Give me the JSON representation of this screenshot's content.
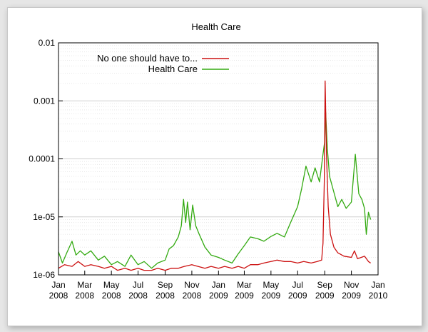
{
  "chart_data": {
    "type": "line",
    "title": "Health Care",
    "xlabel": "",
    "ylabel": "",
    "y_scale": "log",
    "ylim": [
      1e-06,
      0.01
    ],
    "y_ticks": [
      {
        "value": 1e-06,
        "label": "1e-06"
      },
      {
        "value": 1e-05,
        "label": "1e-05"
      },
      {
        "value": 0.0001,
        "label": "0.0001"
      },
      {
        "value": 0.001,
        "label": "0.001"
      },
      {
        "value": 0.01,
        "label": "0.01"
      }
    ],
    "xlim": [
      "2008-01-01",
      "2010-01-01"
    ],
    "x_ticks": [
      {
        "date": "2008-01-01",
        "month": "Jan",
        "year": "2008"
      },
      {
        "date": "2008-03-01",
        "month": "Mar",
        "year": "2008"
      },
      {
        "date": "2008-05-01",
        "month": "May",
        "year": "2008"
      },
      {
        "date": "2008-07-01",
        "month": "Jul",
        "year": "2008"
      },
      {
        "date": "2008-09-01",
        "month": "Sep",
        "year": "2008"
      },
      {
        "date": "2008-11-01",
        "month": "Nov",
        "year": "2008"
      },
      {
        "date": "2009-01-01",
        "month": "Jan",
        "year": "2009"
      },
      {
        "date": "2009-03-01",
        "month": "Mar",
        "year": "2009"
      },
      {
        "date": "2009-05-01",
        "month": "May",
        "year": "2009"
      },
      {
        "date": "2009-07-01",
        "month": "Jul",
        "year": "2009"
      },
      {
        "date": "2009-09-01",
        "month": "Sep",
        "year": "2009"
      },
      {
        "date": "2009-11-01",
        "month": "Nov",
        "year": "2009"
      },
      {
        "date": "2010-01-01",
        "month": "Jan",
        "year": "2010"
      }
    ],
    "grid": true,
    "legend_position": "top-right",
    "series": [
      {
        "name": "No one should have to...",
        "color": "#cc1111",
        "points": [
          [
            "2008-01-01",
            1.3e-06
          ],
          [
            "2008-01-15",
            1.5e-06
          ],
          [
            "2008-02-01",
            1.4e-06
          ],
          [
            "2008-02-15",
            1.7e-06
          ],
          [
            "2008-03-01",
            1.4e-06
          ],
          [
            "2008-03-15",
            1.5e-06
          ],
          [
            "2008-04-01",
            1.4e-06
          ],
          [
            "2008-04-15",
            1.3e-06
          ],
          [
            "2008-05-01",
            1.4e-06
          ],
          [
            "2008-05-15",
            1.2e-06
          ],
          [
            "2008-06-01",
            1.3e-06
          ],
          [
            "2008-06-15",
            1.2e-06
          ],
          [
            "2008-07-01",
            1.3e-06
          ],
          [
            "2008-07-15",
            1.2e-06
          ],
          [
            "2008-08-01",
            1.2e-06
          ],
          [
            "2008-08-15",
            1.3e-06
          ],
          [
            "2008-09-01",
            1.2e-06
          ],
          [
            "2008-09-15",
            1.3e-06
          ],
          [
            "2008-10-01",
            1.3e-06
          ],
          [
            "2008-10-15",
            1.4e-06
          ],
          [
            "2008-11-01",
            1.5e-06
          ],
          [
            "2008-11-15",
            1.4e-06
          ],
          [
            "2008-12-01",
            1.3e-06
          ],
          [
            "2008-12-15",
            1.4e-06
          ],
          [
            "2009-01-01",
            1.3e-06
          ],
          [
            "2009-01-15",
            1.4e-06
          ],
          [
            "2009-02-01",
            1.3e-06
          ],
          [
            "2009-02-15",
            1.4e-06
          ],
          [
            "2009-03-01",
            1.3e-06
          ],
          [
            "2009-03-15",
            1.5e-06
          ],
          [
            "2009-04-01",
            1.5e-06
          ],
          [
            "2009-04-15",
            1.6e-06
          ],
          [
            "2009-05-01",
            1.7e-06
          ],
          [
            "2009-05-15",
            1.8e-06
          ],
          [
            "2009-06-01",
            1.7e-06
          ],
          [
            "2009-06-15",
            1.7e-06
          ],
          [
            "2009-07-01",
            1.6e-06
          ],
          [
            "2009-07-15",
            1.7e-06
          ],
          [
            "2009-08-01",
            1.6e-06
          ],
          [
            "2009-08-15",
            1.7e-06
          ],
          [
            "2009-08-25",
            1.8e-06
          ],
          [
            "2009-08-28",
            3.5e-06
          ],
          [
            "2009-08-31",
            4e-05
          ],
          [
            "2009-09-02",
            0.0022
          ],
          [
            "2009-09-05",
            0.00012
          ],
          [
            "2009-09-09",
            1.5e-05
          ],
          [
            "2009-09-14",
            5e-06
          ],
          [
            "2009-09-22",
            3e-06
          ],
          [
            "2009-10-01",
            2.4e-06
          ],
          [
            "2009-10-15",
            2.1e-06
          ],
          [
            "2009-11-01",
            2e-06
          ],
          [
            "2009-11-08",
            2.6e-06
          ],
          [
            "2009-11-15",
            1.9e-06
          ],
          [
            "2009-12-01",
            2.1e-06
          ],
          [
            "2009-12-10",
            1.7e-06
          ],
          [
            "2009-12-15",
            1.6e-06
          ]
        ]
      },
      {
        "name": "Health Care",
        "color": "#33aa11",
        "points": [
          [
            "2008-01-01",
            2.5e-06
          ],
          [
            "2008-01-10",
            1.6e-06
          ],
          [
            "2008-01-20",
            2.4e-06
          ],
          [
            "2008-02-01",
            3.8e-06
          ],
          [
            "2008-02-10",
            2.2e-06
          ],
          [
            "2008-02-20",
            2.6e-06
          ],
          [
            "2008-03-01",
            2.2e-06
          ],
          [
            "2008-03-15",
            2.6e-06
          ],
          [
            "2008-04-01",
            1.8e-06
          ],
          [
            "2008-04-15",
            2.1e-06
          ],
          [
            "2008-05-01",
            1.5e-06
          ],
          [
            "2008-05-15",
            1.7e-06
          ],
          [
            "2008-06-01",
            1.4e-06
          ],
          [
            "2008-06-15",
            2.2e-06
          ],
          [
            "2008-07-01",
            1.5e-06
          ],
          [
            "2008-07-15",
            1.7e-06
          ],
          [
            "2008-08-01",
            1.3e-06
          ],
          [
            "2008-08-15",
            1.6e-06
          ],
          [
            "2008-09-01",
            1.8e-06
          ],
          [
            "2008-09-10",
            2.8e-06
          ],
          [
            "2008-09-20",
            3.2e-06
          ],
          [
            "2008-10-01",
            4.5e-06
          ],
          [
            "2008-10-08",
            7e-06
          ],
          [
            "2008-10-13",
            2e-05
          ],
          [
            "2008-10-18",
            8e-06
          ],
          [
            "2008-10-22",
            1.8e-05
          ],
          [
            "2008-10-28",
            6e-06
          ],
          [
            "2008-11-03",
            1.6e-05
          ],
          [
            "2008-11-10",
            7e-06
          ],
          [
            "2008-11-18",
            5e-06
          ],
          [
            "2008-12-01",
            3e-06
          ],
          [
            "2008-12-15",
            2.2e-06
          ],
          [
            "2009-01-01",
            2e-06
          ],
          [
            "2009-01-15",
            1.8e-06
          ],
          [
            "2009-02-01",
            1.6e-06
          ],
          [
            "2009-02-15",
            2.3e-06
          ],
          [
            "2009-03-01",
            3.2e-06
          ],
          [
            "2009-03-15",
            4.5e-06
          ],
          [
            "2009-04-01",
            4.2e-06
          ],
          [
            "2009-04-15",
            3.8e-06
          ],
          [
            "2009-05-01",
            4.6e-06
          ],
          [
            "2009-05-15",
            5.2e-06
          ],
          [
            "2009-06-01",
            4.5e-06
          ],
          [
            "2009-06-15",
            8e-06
          ],
          [
            "2009-07-01",
            1.5e-05
          ],
          [
            "2009-07-10",
            3e-05
          ],
          [
            "2009-07-20",
            7.5e-05
          ],
          [
            "2009-08-01",
            4e-05
          ],
          [
            "2009-08-10",
            7e-05
          ],
          [
            "2009-08-20",
            4e-05
          ],
          [
            "2009-08-28",
            0.00012
          ],
          [
            "2009-09-01",
            0.0002
          ],
          [
            "2009-09-03",
            0.00065
          ],
          [
            "2009-09-07",
            0.00015
          ],
          [
            "2009-09-12",
            5e-05
          ],
          [
            "2009-09-20",
            3e-05
          ],
          [
            "2009-10-01",
            1.5e-05
          ],
          [
            "2009-10-10",
            2e-05
          ],
          [
            "2009-10-20",
            1.4e-05
          ],
          [
            "2009-11-01",
            1.8e-05
          ],
          [
            "2009-11-10",
            0.00012
          ],
          [
            "2009-11-18",
            2.5e-05
          ],
          [
            "2009-11-25",
            2e-05
          ],
          [
            "2009-12-01",
            1.4e-05
          ],
          [
            "2009-12-05",
            5e-06
          ],
          [
            "2009-12-10",
            1.2e-05
          ],
          [
            "2009-12-15",
            9e-06
          ]
        ]
      }
    ]
  }
}
